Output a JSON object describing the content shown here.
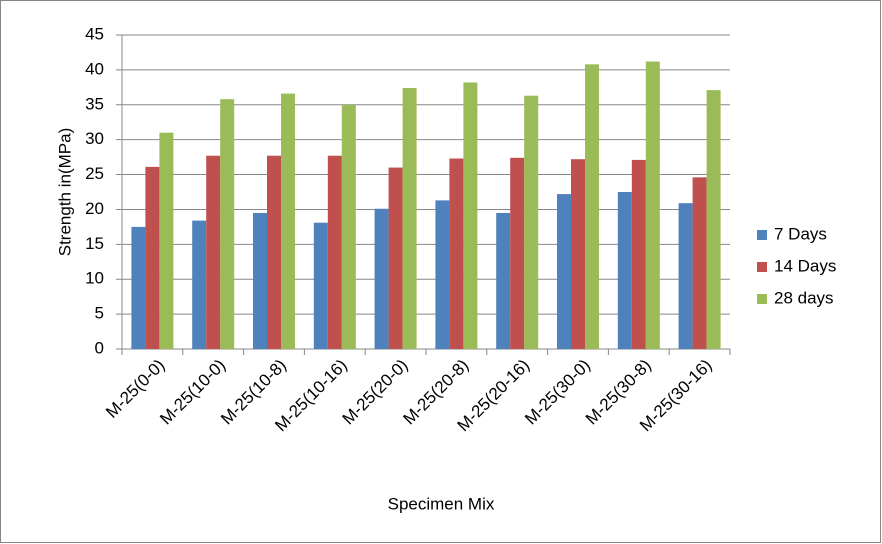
{
  "chart_data": {
    "type": "bar",
    "x_label": "Specimen Mix",
    "y_label": "Strength in(MPa)",
    "categories": [
      "M-25(0-0)",
      "M-25(10-0)",
      "M-25(10-8)",
      "M-25(10-16)",
      "M-25(20-0)",
      "M-25(20-8)",
      "M-25(20-16)",
      "M-25(30-0)",
      "M-25(30-8)",
      "M-25(30-16)"
    ],
    "series": [
      {
        "name": "7 Days",
        "color": "#4f81bd",
        "values": [
          17.5,
          18.4,
          19.5,
          18.1,
          20.1,
          21.3,
          19.5,
          22.2,
          22.5,
          20.9
        ]
      },
      {
        "name": "14 Days",
        "color": "#c0504d",
        "values": [
          26.1,
          27.7,
          27.7,
          27.7,
          26.0,
          27.3,
          27.4,
          27.2,
          27.1,
          24.6
        ]
      },
      {
        "name": "28 days",
        "color": "#9bbb59",
        "values": [
          31.0,
          35.8,
          36.6,
          35.0,
          37.4,
          38.2,
          36.3,
          40.8,
          41.2,
          37.1
        ]
      }
    ],
    "ylim": [
      0,
      45
    ],
    "yticks": [
      0,
      5,
      10,
      15,
      20,
      25,
      30,
      35,
      40,
      45
    ],
    "grid": true,
    "legend": "right"
  }
}
